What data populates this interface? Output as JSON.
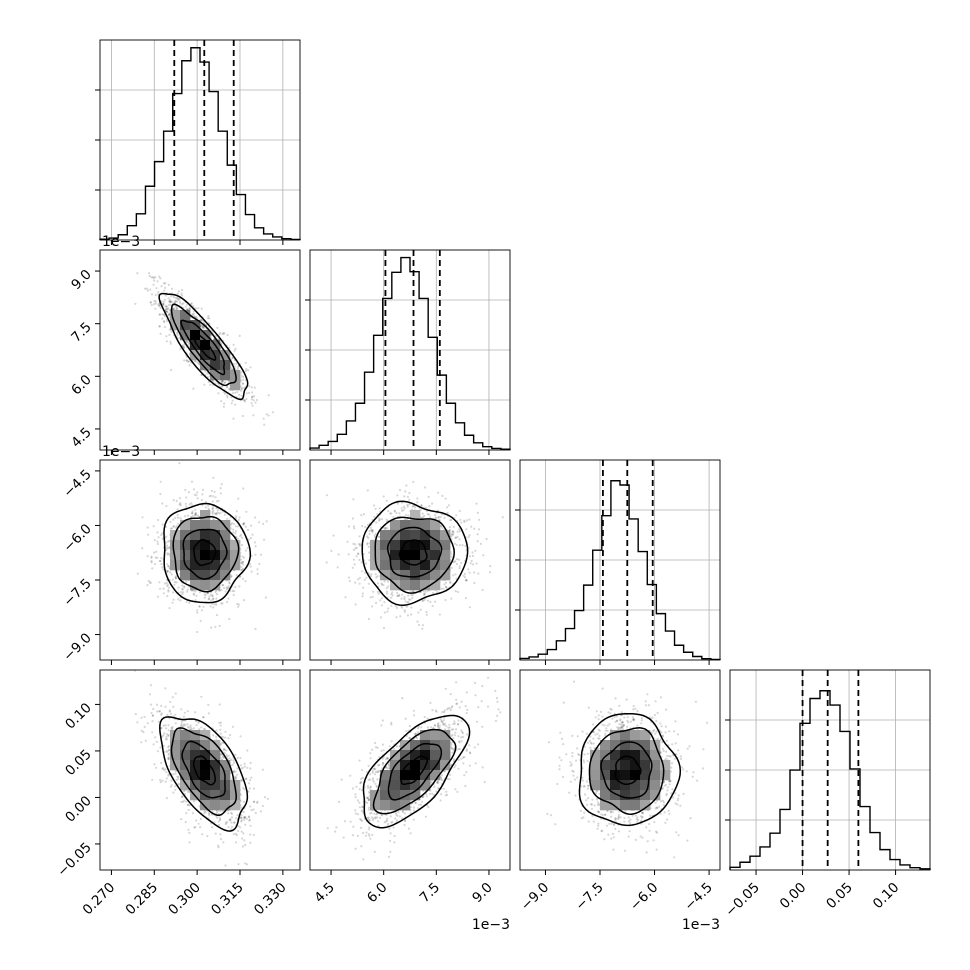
{
  "chart_data": {
    "type": "corner",
    "description_free": true,
    "parameters": [
      {
        "range": [
          0.266,
          0.336
        ],
        "ticks": [
          0.27,
          0.285,
          0.3,
          0.315,
          0.33
        ],
        "tick_labels": [
          "0.270",
          "0.285",
          "0.300",
          "0.315",
          "0.330"
        ],
        "offset_label": ""
      },
      {
        "range": [
          3.9,
          9.6
        ],
        "ticks": [
          4.5,
          6.0,
          7.5,
          9.0
        ],
        "tick_labels": [
          "4.5",
          "6.0",
          "7.5",
          "9.0"
        ],
        "offset_label": "1e−3"
      },
      {
        "range": [
          -9.7,
          -4.2
        ],
        "ticks": [
          -9.0,
          -7.5,
          -6.0,
          -4.5
        ],
        "tick_labels": [
          "−9.0",
          "−7.5",
          "−6.0",
          "−4.5"
        ],
        "offset_label": "1e−3"
      },
      {
        "range": [
          -0.078,
          0.137
        ],
        "ticks": [
          -0.05,
          0.0,
          0.05,
          0.1
        ],
        "tick_labels": [
          "−0.05",
          "0.00",
          "0.05",
          "0.10"
        ],
        "offset_label": ""
      }
    ],
    "histograms": [
      {
        "counts": [
          0.004,
          0.01,
          0.027,
          0.074,
          0.135,
          0.277,
          0.404,
          0.561,
          0.755,
          0.924,
          0.991,
          0.917,
          0.765,
          0.561,
          0.386,
          0.234,
          0.131,
          0.063,
          0.031,
          0.016,
          0.007,
          0.003
        ],
        "quantiles": [
          0.292,
          0.3025,
          0.3128
        ]
      },
      {
        "counts": [
          0.01,
          0.024,
          0.044,
          0.081,
          0.15,
          0.241,
          0.401,
          0.591,
          0.781,
          0.916,
          0.992,
          0.919,
          0.781,
          0.581,
          0.386,
          0.241,
          0.14,
          0.076,
          0.037,
          0.017,
          0.008,
          0.004
        ],
        "quantiles": [
          6.05,
          6.85,
          7.6
        ]
      },
      {
        "counts": [
          0.008,
          0.016,
          0.03,
          0.054,
          0.099,
          0.162,
          0.255,
          0.386,
          0.566,
          0.744,
          0.924,
          0.902,
          0.727,
          0.559,
          0.389,
          0.239,
          0.149,
          0.076,
          0.04,
          0.018,
          0.007,
          0.003
        ],
        "quantiles": [
          -7.42,
          -6.75,
          -6.05
        ]
      },
      {
        "counts": [
          0.014,
          0.04,
          0.071,
          0.119,
          0.19,
          0.312,
          0.515,
          0.756,
          0.884,
          0.924,
          0.85,
          0.714,
          0.521,
          0.327,
          0.193,
          0.105,
          0.054,
          0.026,
          0.012,
          0.006
        ],
        "quantiles": [
          0.0,
          0.027,
          0.06
        ]
      }
    ],
    "pairs": [
      {
        "x": 0,
        "y": 1,
        "center": [
          0.3025,
          6.85
        ],
        "sigma": [
          0.0075,
          0.75
        ],
        "rho": -0.85
      },
      {
        "x": 0,
        "y": 2,
        "center": [
          0.3025,
          -6.75
        ],
        "sigma": [
          0.0075,
          0.68
        ],
        "rho": 0.0
      },
      {
        "x": 1,
        "y": 2,
        "center": [
          6.85,
          -6.75
        ],
        "sigma": [
          0.75,
          0.68
        ],
        "rho": 0.0
      },
      {
        "x": 0,
        "y": 3,
        "center": [
          0.3025,
          0.029
        ],
        "sigma": [
          0.0075,
          0.03
        ],
        "rho": -0.55
      },
      {
        "x": 1,
        "y": 3,
        "center": [
          6.85,
          0.029
        ],
        "sigma": [
          0.75,
          0.03
        ],
        "rho": 0.65
      },
      {
        "x": 2,
        "y": 3,
        "center": [
          -6.75,
          0.029
        ],
        "sigma": [
          0.68,
          0.03
        ],
        "rho": 0.0
      }
    ],
    "contour_levels_sigma": [
      0.5,
      1.0,
      1.5,
      2.0
    ],
    "grid": true,
    "colors": {
      "hist_line": "#000000",
      "quantile_line": "#000000",
      "density": "#000000",
      "scatter": "#000000",
      "grid": "#b0b0b0"
    }
  }
}
